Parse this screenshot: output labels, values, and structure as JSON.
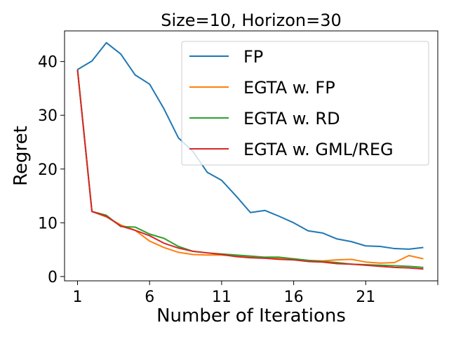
{
  "chart_data": {
    "type": "line",
    "title": "Size=10, Horizon=30",
    "xlabel": "Number of Iterations",
    "ylabel": "Regret",
    "xlim": [
      0.1,
      26.0
    ],
    "ylim": [
      -0.8,
      45.7
    ],
    "xticks": [
      1,
      6,
      11,
      16,
      21,
      26
    ],
    "xtick_labels": [
      "1",
      "6",
      "11",
      "16",
      "21",
      ""
    ],
    "yticks": [
      0,
      10,
      20,
      30,
      40
    ],
    "ytick_labels": [
      "0",
      "10",
      "20",
      "30",
      "40"
    ],
    "grid": false,
    "legend_position": "upper-right",
    "x": [
      1,
      2,
      3,
      4,
      5,
      6,
      7,
      8,
      9,
      10,
      11,
      12,
      13,
      14,
      15,
      16,
      17,
      18,
      19,
      20,
      21,
      22,
      23,
      24,
      25
    ],
    "series": [
      {
        "name": "FP",
        "color": "#1f77b4",
        "values": [
          38.5,
          40.1,
          43.5,
          41.4,
          37.5,
          35.8,
          31.2,
          25.8,
          23.3,
          19.4,
          17.9,
          15.0,
          11.9,
          12.3,
          11.2,
          10.0,
          8.5,
          8.1,
          7.0,
          6.5,
          5.7,
          5.6,
          5.2,
          5.1,
          5.4
        ]
      },
      {
        "name": "EGTA w. FP",
        "color": "#ff7f0e",
        "values": [
          38.5,
          12.1,
          11.1,
          9.6,
          8.6,
          6.6,
          5.4,
          4.5,
          4.1,
          4.0,
          4.0,
          3.8,
          3.6,
          3.5,
          3.4,
          3.3,
          3.0,
          2.9,
          3.1,
          3.2,
          2.7,
          2.5,
          2.6,
          3.9,
          3.3
        ]
      },
      {
        "name": "EGTA w. RD",
        "color": "#2ca02c",
        "values": [
          38.5,
          12.1,
          11.4,
          9.3,
          9.2,
          7.9,
          7.1,
          5.6,
          4.7,
          4.4,
          4.2,
          4.0,
          3.8,
          3.6,
          3.6,
          3.3,
          3.0,
          2.8,
          2.6,
          2.3,
          2.2,
          2.1,
          2.0,
          1.9,
          1.7
        ]
      },
      {
        "name": "EGTA w. GML/REG",
        "color": "#d62728",
        "values": [
          38.5,
          12.1,
          11.2,
          9.4,
          8.6,
          7.6,
          6.2,
          5.3,
          4.7,
          4.4,
          4.1,
          3.7,
          3.5,
          3.4,
          3.2,
          3.1,
          2.8,
          2.7,
          2.4,
          2.3,
          2.1,
          1.9,
          1.7,
          1.6,
          1.4
        ]
      }
    ]
  }
}
